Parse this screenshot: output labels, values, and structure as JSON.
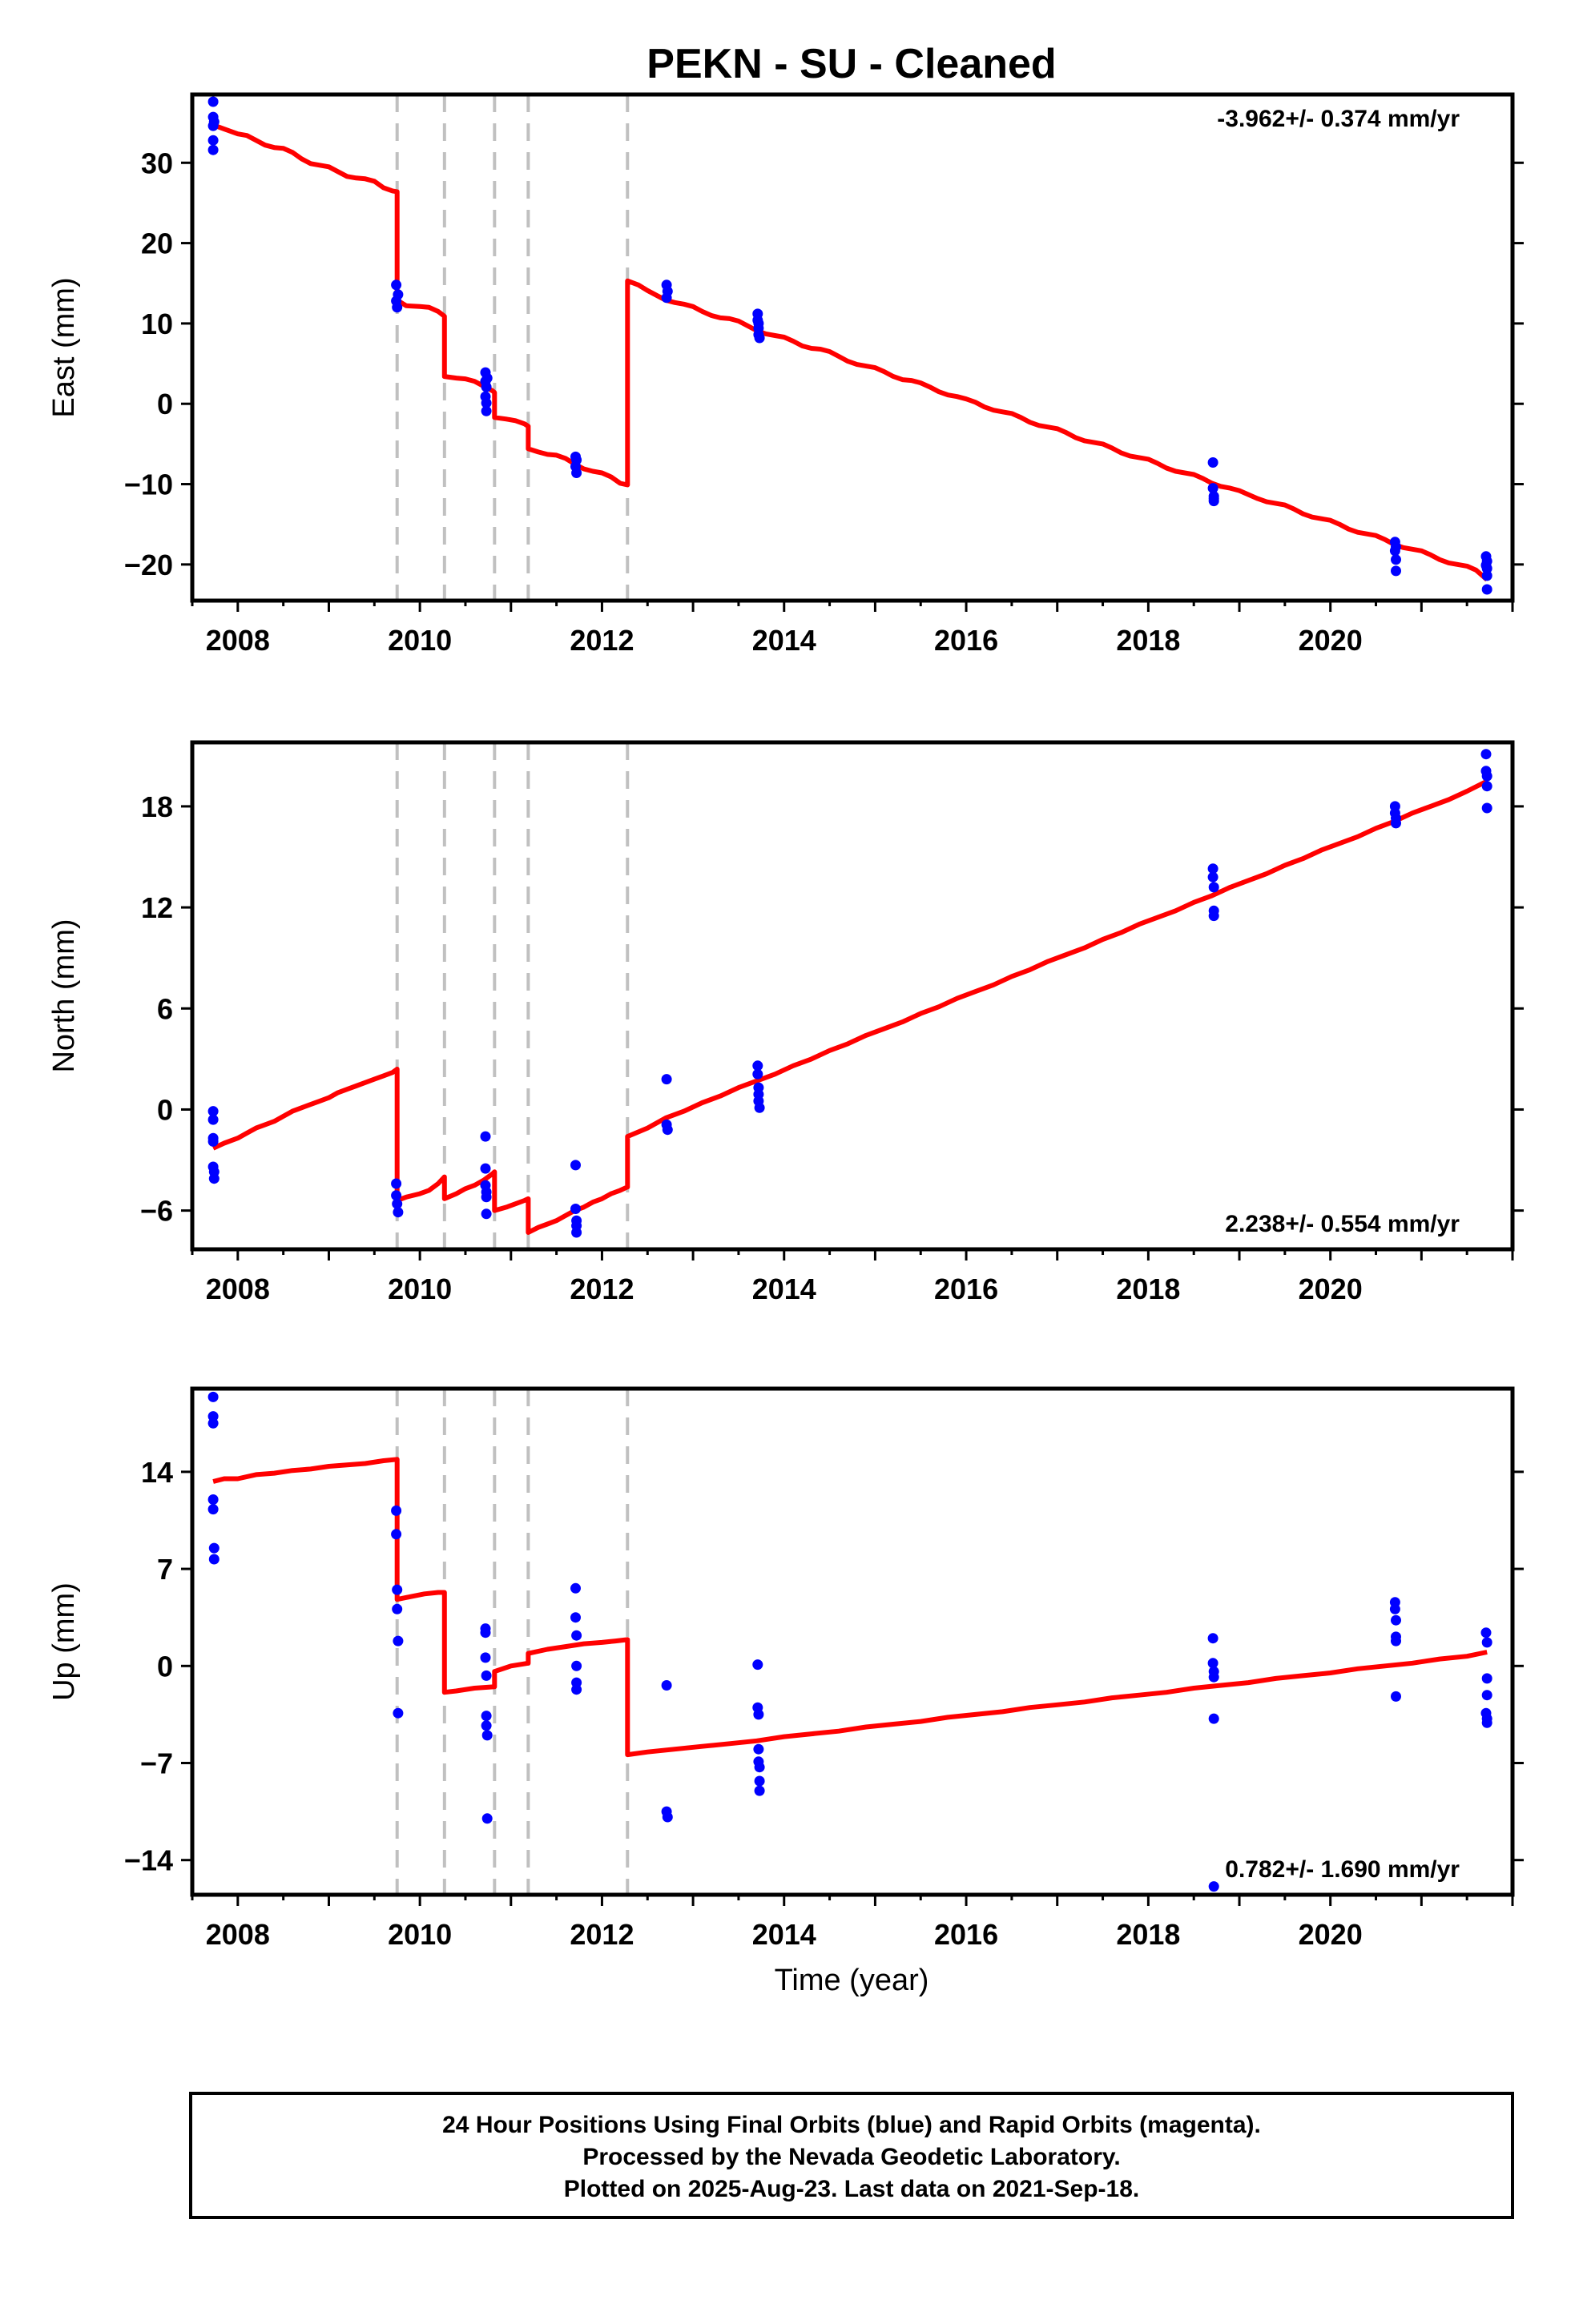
{
  "title": "PEKN  - SU - Cleaned",
  "xlabel": "Time (year)",
  "footer": {
    "lines": [
      "24 Hour Positions Using Final Orbits (blue) and Rapid Orbits (magenta).",
      "Processed by the Nevada Geodetic Laboratory.",
      "Plotted on 2025-Aug-23. Last data on 2021-Sep-18."
    ]
  },
  "colors": {
    "final_orbits": "#0000ff",
    "model_line": "#ff0000",
    "step_lines": "#c0c0c0",
    "frame": "#000000"
  },
  "chart_data": [
    {
      "type": "scatter",
      "ylabel": "East (mm)",
      "rate_label": "-3.962+/- 0.374 mm/yr",
      "rate_position": "top-right",
      "xlim": [
        2007.5,
        2022.0
      ],
      "ylim": [
        -24.5,
        38.5
      ],
      "x_ticks": [
        2008,
        2010,
        2012,
        2014,
        2016,
        2018,
        2020
      ],
      "y_ticks": [
        -20,
        -10,
        0,
        10,
        20,
        30
      ],
      "steps": [
        2009.75,
        2010.27,
        2010.82,
        2011.19,
        2012.28
      ],
      "points": {
        "x": [
          2007.73,
          2007.73,
          2007.73,
          2007.73,
          2007.73,
          2007.74,
          2009.74,
          2009.74,
          2009.75,
          2009.76,
          2010.72,
          2010.72,
          2010.72,
          2010.73,
          2010.73,
          2010.73,
          2010.74,
          2011.71,
          2011.71,
          2011.72,
          2011.72,
          2012.71,
          2012.71,
          2012.72,
          2013.71,
          2013.71,
          2013.72,
          2013.72,
          2013.72,
          2013.73,
          2018.71,
          2018.71,
          2018.72,
          2018.72,
          2018.72,
          2020.71,
          2020.71,
          2020.72,
          2020.72,
          2020.72,
          2021.71,
          2021.71,
          2021.72,
          2021.72,
          2021.72,
          2021.72
        ],
        "y": [
          37.6,
          35.7,
          34.6,
          32.8,
          31.6,
          35.1,
          14.8,
          12.8,
          12.0,
          13.6,
          3.9,
          2.8,
          0.9,
          0.1,
          -0.9,
          2.1,
          3.2,
          -6.6,
          -7.8,
          -8.6,
          -7.0,
          14.8,
          13.2,
          14.0,
          11.2,
          10.4,
          9.4,
          8.6,
          10.0,
          8.2,
          -7.3,
          -10.5,
          -11.5,
          -12.1,
          -11.8,
          -17.2,
          -18.3,
          -19.4,
          -20.8,
          -17.8,
          -19.0,
          -20.1,
          -20.5,
          -21.4,
          -23.1,
          -19.6
        ]
      },
      "model": {
        "x": [
          2007.73,
          2007.85,
          2008.0,
          2008.1,
          2008.2,
          2008.3,
          2008.4,
          2008.5,
          2008.6,
          2008.7,
          2008.8,
          2008.9,
          2009.0,
          2009.1,
          2009.2,
          2009.3,
          2009.4,
          2009.5,
          2009.6,
          2009.7,
          2009.75,
          2009.75,
          2009.85,
          2010.0,
          2010.1,
          2010.2,
          2010.27,
          2010.27,
          2010.4,
          2010.5,
          2010.6,
          2010.7,
          2010.8,
          2010.82,
          2010.82,
          2010.95,
          2011.05,
          2011.15,
          2011.19,
          2011.19,
          2011.3,
          2011.4,
          2011.5,
          2011.6,
          2011.7,
          2011.8,
          2011.9,
          2012.0,
          2012.1,
          2012.2,
          2012.28,
          2012.28,
          2012.4,
          2012.5,
          2012.6,
          2012.7,
          2012.8,
          2012.9,
          2013.0,
          2013.1,
          2013.2,
          2013.3,
          2013.4,
          2013.5,
          2013.6,
          2013.7,
          2013.8,
          2013.9,
          2014.0,
          2014.1,
          2014.2,
          2014.3,
          2014.4,
          2014.5,
          2014.6,
          2014.7,
          2014.8,
          2014.9,
          2015.0,
          2015.1,
          2015.2,
          2015.3,
          2015.4,
          2015.5,
          2015.6,
          2015.7,
          2015.8,
          2015.9,
          2016.0,
          2016.1,
          2016.2,
          2016.3,
          2016.4,
          2016.5,
          2016.6,
          2016.7,
          2016.8,
          2016.9,
          2017.0,
          2017.1,
          2017.2,
          2017.3,
          2017.4,
          2017.5,
          2017.6,
          2017.7,
          2017.8,
          2017.9,
          2018.0,
          2018.1,
          2018.2,
          2018.3,
          2018.4,
          2018.5,
          2018.6,
          2018.7,
          2018.8,
          2018.9,
          2019.0,
          2019.1,
          2019.2,
          2019.3,
          2019.4,
          2019.5,
          2019.6,
          2019.7,
          2019.8,
          2019.9,
          2020.0,
          2020.1,
          2020.2,
          2020.3,
          2020.4,
          2020.5,
          2020.6,
          2020.7,
          2020.8,
          2020.9,
          2021.0,
          2021.1,
          2021.2,
          2021.3,
          2021.4,
          2021.5,
          2021.6,
          2021.72
        ],
        "y": [
          34.7,
          34.2,
          33.6,
          33.4,
          32.8,
          32.2,
          31.9,
          31.8,
          31.3,
          30.5,
          29.9,
          29.7,
          29.5,
          28.9,
          28.3,
          28.1,
          28.0,
          27.7,
          26.9,
          26.5,
          26.4,
          12.9,
          12.2,
          12.1,
          12.0,
          11.5,
          10.9,
          3.4,
          3.2,
          3.1,
          2.8,
          2.2,
          1.6,
          1.4,
          -1.7,
          -1.9,
          -2.1,
          -2.5,
          -2.8,
          -5.6,
          -6.0,
          -6.3,
          -6.4,
          -6.8,
          -7.5,
          -8.1,
          -8.4,
          -8.6,
          -9.1,
          -9.9,
          -10.1,
          15.3,
          14.8,
          14.1,
          13.5,
          12.9,
          12.6,
          12.4,
          12.1,
          11.5,
          11.0,
          10.7,
          10.6,
          10.3,
          9.7,
          9.1,
          8.7,
          8.5,
          8.3,
          7.8,
          7.2,
          6.9,
          6.8,
          6.5,
          5.9,
          5.3,
          4.9,
          4.7,
          4.5,
          4.0,
          3.4,
          3.0,
          2.9,
          2.6,
          2.1,
          1.5,
          1.1,
          0.9,
          0.6,
          0.2,
          -0.4,
          -0.8,
          -1.0,
          -1.2,
          -1.7,
          -2.3,
          -2.7,
          -2.9,
          -3.1,
          -3.6,
          -4.2,
          -4.6,
          -4.8,
          -5.0,
          -5.5,
          -6.1,
          -6.5,
          -6.7,
          -6.9,
          -7.4,
          -8.0,
          -8.4,
          -8.6,
          -8.8,
          -9.3,
          -9.9,
          -10.3,
          -10.5,
          -10.8,
          -11.3,
          -11.8,
          -12.2,
          -12.4,
          -12.6,
          -13.1,
          -13.7,
          -14.1,
          -14.3,
          -14.5,
          -15.0,
          -15.6,
          -16.0,
          -16.2,
          -16.4,
          -16.9,
          -17.5,
          -17.9,
          -18.1,
          -18.3,
          -18.8,
          -19.4,
          -19.8,
          -20.0,
          -20.2,
          -20.7,
          -21.9
        ]
      }
    },
    {
      "type": "scatter",
      "ylabel": "North (mm)",
      "rate_label": "2.238+/- 0.554 mm/yr",
      "rate_position": "bottom-right",
      "xlim": [
        2007.5,
        2022.0
      ],
      "ylim": [
        -8.3,
        21.8
      ],
      "x_ticks": [
        2008,
        2010,
        2012,
        2014,
        2016,
        2018,
        2020
      ],
      "y_ticks": [
        -6,
        0,
        6,
        12,
        18
      ],
      "steps": [
        2009.75,
        2010.27,
        2010.82,
        2011.19,
        2012.28
      ],
      "points": {
        "x": [
          2007.73,
          2007.73,
          2007.73,
          2007.73,
          2007.73,
          2007.74,
          2007.74,
          2009.74,
          2009.74,
          2009.75,
          2009.76,
          2010.72,
          2010.72,
          2010.72,
          2010.73,
          2010.73,
          2010.73,
          2011.71,
          2011.71,
          2011.72,
          2011.72,
          2011.72,
          2012.71,
          2012.71,
          2012.72,
          2013.71,
          2013.71,
          2013.72,
          2013.72,
          2013.72,
          2013.73,
          2018.71,
          2018.71,
          2018.72,
          2018.72,
          2018.72,
          2020.71,
          2020.71,
          2020.72,
          2020.72,
          2021.71,
          2021.71,
          2021.72,
          2021.72,
          2021.72
        ],
        "y": [
          -0.1,
          -0.6,
          -1.7,
          -1.9,
          -3.4,
          -3.7,
          -4.1,
          -4.4,
          -5.1,
          -5.6,
          -6.1,
          -1.6,
          -3.5,
          -4.5,
          -4.9,
          -5.2,
          -6.2,
          -3.3,
          -5.9,
          -6.6,
          -6.9,
          -7.3,
          1.8,
          -0.9,
          -1.2,
          2.6,
          2.1,
          1.3,
          0.9,
          0.5,
          0.1,
          14.3,
          13.8,
          13.2,
          11.8,
          11.5,
          18.0,
          17.6,
          17.3,
          17.0,
          21.1,
          20.1,
          19.8,
          19.2,
          17.9
        ]
      },
      "model": {
        "x": [
          2007.73,
          2007.85,
          2008.0,
          2008.1,
          2008.2,
          2008.3,
          2008.4,
          2008.5,
          2008.6,
          2008.7,
          2008.8,
          2008.9,
          2009.0,
          2009.1,
          2009.2,
          2009.3,
          2009.4,
          2009.5,
          2009.6,
          2009.7,
          2009.75,
          2009.75,
          2009.85,
          2010.0,
          2010.1,
          2010.2,
          2010.27,
          2010.27,
          2010.4,
          2010.5,
          2010.6,
          2010.7,
          2010.8,
          2010.82,
          2010.82,
          2010.95,
          2011.05,
          2011.15,
          2011.19,
          2011.19,
          2011.3,
          2011.4,
          2011.5,
          2011.6,
          2011.7,
          2011.8,
          2011.9,
          2012.0,
          2012.1,
          2012.2,
          2012.28,
          2012.28,
          2012.5,
          2012.7,
          2012.9,
          2013.1,
          2013.3,
          2013.5,
          2013.7,
          2013.9,
          2014.1,
          2014.3,
          2014.5,
          2014.7,
          2014.9,
          2015.1,
          2015.3,
          2015.5,
          2015.7,
          2015.9,
          2016.1,
          2016.3,
          2016.5,
          2016.7,
          2016.9,
          2017.1,
          2017.3,
          2017.5,
          2017.7,
          2017.9,
          2018.1,
          2018.3,
          2018.5,
          2018.7,
          2018.9,
          2019.1,
          2019.3,
          2019.5,
          2019.7,
          2019.9,
          2020.1,
          2020.3,
          2020.5,
          2020.7,
          2020.9,
          2021.1,
          2021.3,
          2021.5,
          2021.72
        ],
        "y": [
          -2.3,
          -2.0,
          -1.7,
          -1.4,
          -1.1,
          -0.9,
          -0.7,
          -0.4,
          -0.1,
          0.1,
          0.3,
          0.5,
          0.7,
          1.0,
          1.2,
          1.4,
          1.6,
          1.8,
          2.0,
          2.2,
          2.4,
          -5.4,
          -5.2,
          -5.0,
          -4.8,
          -4.4,
          -4.0,
          -5.3,
          -5.0,
          -4.7,
          -4.5,
          -4.2,
          -3.8,
          -3.7,
          -6.0,
          -5.8,
          -5.6,
          -5.4,
          -5.3,
          -7.3,
          -7.0,
          -6.8,
          -6.6,
          -6.3,
          -6.0,
          -5.8,
          -5.5,
          -5.3,
          -5.0,
          -4.8,
          -4.6,
          -1.6,
          -1.1,
          -0.5,
          -0.1,
          0.4,
          0.8,
          1.3,
          1.7,
          2.1,
          2.6,
          3.0,
          3.5,
          3.9,
          4.4,
          4.8,
          5.2,
          5.7,
          6.1,
          6.6,
          7.0,
          7.4,
          7.9,
          8.3,
          8.8,
          9.2,
          9.6,
          10.1,
          10.5,
          11.0,
          11.4,
          11.8,
          12.3,
          12.7,
          13.2,
          13.6,
          14.0,
          14.5,
          14.9,
          15.4,
          15.8,
          16.2,
          16.7,
          17.1,
          17.6,
          18.0,
          18.4,
          18.9,
          19.5
        ]
      }
    },
    {
      "type": "scatter",
      "ylabel": "Up (mm)",
      "rate_label": "0.782+/- 1.690 mm/yr",
      "rate_position": "bottom-right",
      "xlim": [
        2007.5,
        2022.0
      ],
      "ylim": [
        -16.5,
        20.0
      ],
      "x_ticks": [
        2008,
        2010,
        2012,
        2014,
        2016,
        2018,
        2020
      ],
      "y_ticks": [
        -14,
        -7,
        0,
        7,
        14
      ],
      "steps": [
        2009.75,
        2010.27,
        2010.82,
        2011.19,
        2012.28
      ],
      "points": {
        "x": [
          2007.73,
          2007.73,
          2007.73,
          2007.73,
          2007.73,
          2007.74,
          2007.74,
          2009.74,
          2009.74,
          2009.75,
          2009.75,
          2009.76,
          2009.76,
          2010.72,
          2010.72,
          2010.72,
          2010.73,
          2010.73,
          2010.73,
          2010.74,
          2010.74,
          2011.71,
          2011.71,
          2011.72,
          2011.72,
          2011.72,
          2011.72,
          2012.71,
          2012.71,
          2012.72,
          2013.71,
          2013.71,
          2013.72,
          2013.72,
          2013.72,
          2013.73,
          2013.73,
          2013.73,
          2018.71,
          2018.71,
          2018.72,
          2018.72,
          2018.72,
          2018.72,
          2020.71,
          2020.71,
          2020.72,
          2020.72,
          2020.72,
          2020.72,
          2021.71,
          2021.71,
          2021.72,
          2021.72,
          2021.72,
          2021.72,
          2021.72
        ],
        "y": [
          19.4,
          18.0,
          17.5,
          12.0,
          11.3,
          8.5,
          7.7,
          11.2,
          9.5,
          5.5,
          4.1,
          1.8,
          -3.4,
          2.7,
          2.4,
          0.6,
          -0.7,
          -3.6,
          -4.3,
          -5.0,
          -11.0,
          5.6,
          3.5,
          2.2,
          0.0,
          -1.2,
          -1.7,
          -1.4,
          -10.5,
          -10.9,
          0.1,
          -3.0,
          -3.5,
          -6.0,
          -6.9,
          -7.3,
          -8.3,
          -9.0,
          2.0,
          0.2,
          -0.4,
          -0.8,
          -3.8,
          -15.9,
          4.6,
          4.1,
          3.3,
          2.1,
          1.8,
          -2.2,
          -3.4,
          2.4,
          1.7,
          -0.9,
          -2.1,
          -3.8,
          -4.1
        ]
      },
      "model": {
        "x": [
          2007.73,
          2007.85,
          2008.0,
          2008.2,
          2008.4,
          2008.6,
          2008.8,
          2009.0,
          2009.2,
          2009.4,
          2009.6,
          2009.75,
          2009.75,
          2009.9,
          2010.05,
          2010.2,
          2010.27,
          2010.27,
          2010.4,
          2010.6,
          2010.82,
          2010.82,
          2011.0,
          2011.19,
          2011.19,
          2011.4,
          2011.6,
          2011.8,
          2012.0,
          2012.15,
          2012.28,
          2012.28,
          2012.5,
          2012.8,
          2013.1,
          2013.4,
          2013.7,
          2014.0,
          2014.3,
          2014.6,
          2014.9,
          2015.2,
          2015.5,
          2015.8,
          2016.1,
          2016.4,
          2016.7,
          2017.0,
          2017.3,
          2017.6,
          2017.9,
          2018.2,
          2018.5,
          2018.8,
          2019.1,
          2019.4,
          2019.7,
          2020.0,
          2020.3,
          2020.6,
          2020.9,
          2021.2,
          2021.5,
          2021.72
        ],
        "y": [
          13.3,
          13.5,
          13.5,
          13.8,
          13.9,
          14.1,
          14.2,
          14.4,
          14.5,
          14.6,
          14.8,
          14.9,
          4.8,
          5.0,
          5.2,
          5.3,
          5.3,
          -1.9,
          -1.8,
          -1.6,
          -1.5,
          -0.4,
          0.0,
          0.2,
          0.9,
          1.2,
          1.4,
          1.6,
          1.7,
          1.8,
          1.9,
          -6.4,
          -6.2,
          -6.0,
          -5.8,
          -5.6,
          -5.4,
          -5.1,
          -4.9,
          -4.7,
          -4.4,
          -4.2,
          -4.0,
          -3.7,
          -3.5,
          -3.3,
          -3.0,
          -2.8,
          -2.6,
          -2.3,
          -2.1,
          -1.9,
          -1.6,
          -1.4,
          -1.2,
          -0.9,
          -0.7,
          -0.5,
          -0.2,
          0.0,
          0.2,
          0.5,
          0.7,
          1.0
        ]
      }
    }
  ]
}
